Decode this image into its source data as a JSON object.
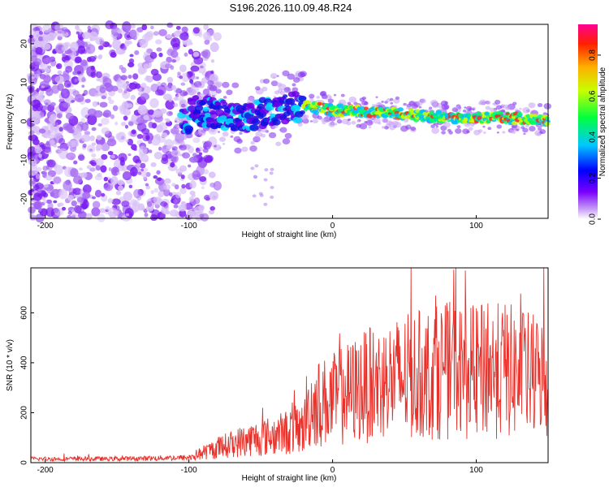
{
  "title": "S196.2026.110.09.48.R24",
  "chart_data": [
    {
      "type": "heatmap",
      "description_free": true,
      "xlabel": "Height of straight line (km)",
      "ylabel": "Frequency (Hz)",
      "xlim": [
        -210,
        150
      ],
      "ylim": [
        -25,
        25
      ],
      "xticks": [
        -200,
        -100,
        0,
        100
      ],
      "yticks": [
        -20,
        -10,
        0,
        10,
        20
      ],
      "colorbar": {
        "label": "Normalized spectral amplitude",
        "range": [
          0,
          0.95
        ],
        "ticks": [
          0.0,
          0.2,
          0.4,
          0.6,
          0.8
        ],
        "tick_labels": [
          "0.0",
          "0.2",
          "0.4",
          "0.6",
          "0.8"
        ]
      },
      "signal_track": [
        {
          "x": -100,
          "y": 3
        },
        {
          "x": -80,
          "y": 2
        },
        {
          "x": -60,
          "y": 1
        },
        {
          "x": -40,
          "y": 3
        },
        {
          "x": -20,
          "y": 4
        },
        {
          "x": 0,
          "y": 3
        },
        {
          "x": 20,
          "y": 2.5
        },
        {
          "x": 40,
          "y": 2.2
        },
        {
          "x": 60,
          "y": 1.5
        },
        {
          "x": 80,
          "y": 1
        },
        {
          "x": 100,
          "y": 1
        },
        {
          "x": 120,
          "y": 1
        },
        {
          "x": 150,
          "y": 0
        }
      ]
    },
    {
      "type": "line",
      "xlabel": "Height of straight line (km)",
      "ylabel": "SNR (10 * v/v)",
      "xlim": [
        -210,
        150
      ],
      "ylim": [
        0,
        780
      ],
      "xticks": [
        -200,
        -100,
        0,
        100
      ],
      "yticks": [
        0,
        200,
        400,
        600
      ],
      "color": "#e8312a",
      "series": [
        {
          "name": "SNR",
          "x": [
            -210,
            -150,
            -100,
            -80,
            -60,
            -40,
            -20,
            -15,
            0,
            20,
            40,
            60,
            80,
            100,
            120,
            150
          ],
          "values": [
            15,
            15,
            20,
            60,
            90,
            110,
            140,
            230,
            250,
            300,
            330,
            350,
            370,
            360,
            370,
            330
          ]
        }
      ]
    }
  ]
}
